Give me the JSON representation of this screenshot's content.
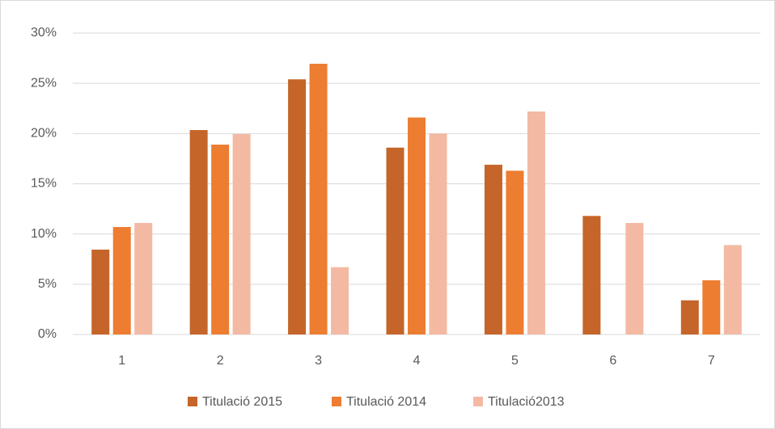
{
  "chart_data": {
    "type": "bar",
    "categories": [
      "1",
      "2",
      "3",
      "4",
      "5",
      "6",
      "7"
    ],
    "series": [
      {
        "name": "Titulació 2015",
        "color": "#c5652a",
        "values": [
          8.45,
          20.35,
          25.4,
          18.6,
          16.9,
          11.8,
          3.4
        ]
      },
      {
        "name": "Titulació 2014",
        "color": "#ed7d31",
        "values": [
          10.7,
          18.9,
          26.95,
          21.6,
          16.3,
          0,
          5.4
        ]
      },
      {
        "name": "Titulació2013",
        "color": "#f4b9a3",
        "values": [
          11.1,
          19.95,
          6.7,
          20,
          22.2,
          11.1,
          8.9
        ]
      }
    ],
    "ylim": [
      0,
      30
    ],
    "yticks": [
      {
        "value": 0,
        "label": "0%"
      },
      {
        "value": 5,
        "label": "5%"
      },
      {
        "value": 10,
        "label": "10%"
      },
      {
        "value": 15,
        "label": "15%"
      },
      {
        "value": 20,
        "label": "20%"
      },
      {
        "value": 25,
        "label": "25%"
      },
      {
        "value": 30,
        "label": "30%"
      }
    ],
    "grid": true,
    "legend": "bottom"
  }
}
